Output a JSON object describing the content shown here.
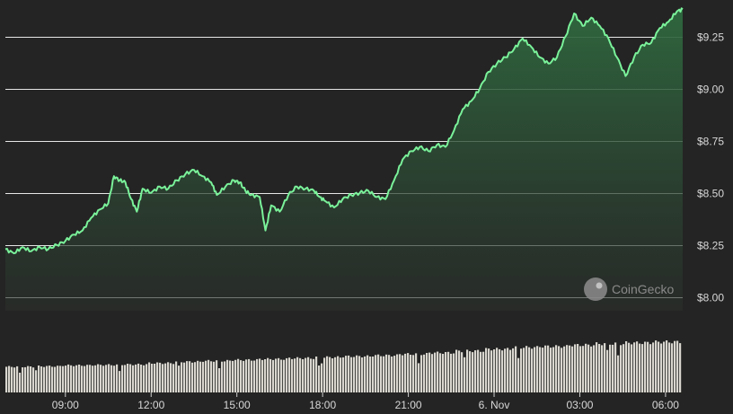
{
  "watermark": {
    "text": "CoinGecko",
    "icon": "gecko-logo-icon"
  },
  "colors": {
    "background": "#242424",
    "line": "#7af29a",
    "fill_top": "#2f6a3f",
    "volume": "#d9d6cf",
    "grid": "#e6e6e6"
  },
  "chart_data": {
    "type": "area",
    "title": "",
    "xlabel": "",
    "ylabel": "",
    "currency_prefix": "$",
    "x_ticks": [
      "09:00",
      "12:00",
      "15:00",
      "18:00",
      "21:00",
      "6. Nov",
      "03:00",
      "06:00"
    ],
    "y_ticks": [
      "$8.00",
      "$8.25",
      "$8.50",
      "$8.75",
      "$9.00",
      "$9.25"
    ],
    "y_tick_values": [
      8.0,
      8.25,
      8.5,
      8.75,
      9.0,
      9.25
    ],
    "ylim": [
      7.935,
      9.39
    ],
    "x_hours_range": [
      6.9,
      30.6
    ],
    "grid": true,
    "series": [
      {
        "values_at": "hours since 00:00 of the first day",
        "points": [
          [
            6.9,
            8.23
          ],
          [
            7.2,
            8.21
          ],
          [
            7.5,
            8.24
          ],
          [
            7.8,
            8.22
          ],
          [
            8.1,
            8.24
          ],
          [
            8.4,
            8.23
          ],
          [
            8.7,
            8.25
          ],
          [
            9.0,
            8.27
          ],
          [
            9.3,
            8.3
          ],
          [
            9.6,
            8.32
          ],
          [
            9.9,
            8.38
          ],
          [
            10.2,
            8.42
          ],
          [
            10.5,
            8.45
          ],
          [
            10.7,
            8.58
          ],
          [
            10.9,
            8.56
          ],
          [
            11.1,
            8.55
          ],
          [
            11.3,
            8.47
          ],
          [
            11.5,
            8.41
          ],
          [
            11.7,
            8.52
          ],
          [
            12.0,
            8.5
          ],
          [
            12.3,
            8.53
          ],
          [
            12.6,
            8.52
          ],
          [
            12.9,
            8.56
          ],
          [
            13.2,
            8.59
          ],
          [
            13.5,
            8.61
          ],
          [
            13.8,
            8.58
          ],
          [
            14.1,
            8.55
          ],
          [
            14.3,
            8.49
          ],
          [
            14.6,
            8.53
          ],
          [
            14.9,
            8.56
          ],
          [
            15.1,
            8.55
          ],
          [
            15.3,
            8.51
          ],
          [
            15.5,
            8.49
          ],
          [
            15.8,
            8.48
          ],
          [
            16.0,
            8.32
          ],
          [
            16.2,
            8.44
          ],
          [
            16.5,
            8.41
          ],
          [
            16.8,
            8.49
          ],
          [
            17.1,
            8.53
          ],
          [
            17.4,
            8.52
          ],
          [
            17.7,
            8.51
          ],
          [
            17.9,
            8.48
          ],
          [
            18.1,
            8.46
          ],
          [
            18.4,
            8.43
          ],
          [
            18.7,
            8.47
          ],
          [
            19.0,
            8.49
          ],
          [
            19.3,
            8.5
          ],
          [
            19.6,
            8.51
          ],
          [
            19.9,
            8.48
          ],
          [
            20.2,
            8.47
          ],
          [
            20.5,
            8.56
          ],
          [
            20.8,
            8.66
          ],
          [
            21.1,
            8.7
          ],
          [
            21.4,
            8.72
          ],
          [
            21.7,
            8.7
          ],
          [
            22.0,
            8.73
          ],
          [
            22.3,
            8.72
          ],
          [
            22.6,
            8.8
          ],
          [
            22.9,
            8.9
          ],
          [
            23.2,
            8.94
          ],
          [
            23.5,
            9.0
          ],
          [
            23.8,
            9.08
          ],
          [
            24.1,
            9.12
          ],
          [
            24.4,
            9.15
          ],
          [
            24.7,
            9.19
          ],
          [
            25.0,
            9.24
          ],
          [
            25.3,
            9.2
          ],
          [
            25.6,
            9.15
          ],
          [
            25.9,
            9.12
          ],
          [
            26.2,
            9.15
          ],
          [
            26.5,
            9.25
          ],
          [
            26.8,
            9.36
          ],
          [
            27.1,
            9.3
          ],
          [
            27.4,
            9.34
          ],
          [
            27.7,
            9.3
          ],
          [
            28.0,
            9.24
          ],
          [
            28.3,
            9.15
          ],
          [
            28.6,
            9.06
          ],
          [
            28.9,
            9.15
          ],
          [
            29.2,
            9.21
          ],
          [
            29.5,
            9.22
          ],
          [
            29.8,
            9.29
          ],
          [
            30.1,
            9.32
          ],
          [
            30.4,
            9.37
          ],
          [
            30.6,
            9.38
          ]
        ]
      }
    ],
    "volume_note": "relative trading volume bars (no scale shown)",
    "volume_levels": [
      0.57,
      0.58,
      0.6,
      0.61,
      0.62,
      0.65,
      0.68,
      0.7,
      0.72,
      0.74,
      0.76,
      0.78,
      0.8,
      0.82,
      0.85,
      0.88,
      0.92,
      0.96,
      1.0,
      1.02,
      1.05,
      1.08,
      1.1,
      1.12
    ]
  }
}
